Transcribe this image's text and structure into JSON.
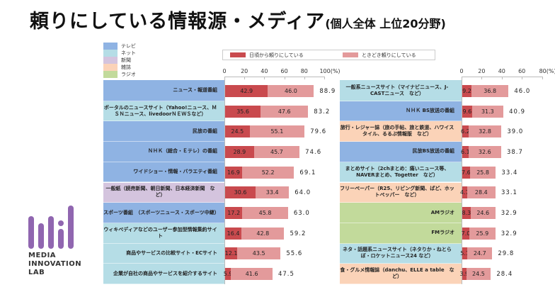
{
  "title": "頼りにしている情報源・メディア",
  "subtitle": "(個人全体 上位20分野)",
  "colors": {
    "tv": "#8fb3e3",
    "net": "#b5dde6",
    "newspaper": "#d4c4de",
    "magazine": "#fbd3b8",
    "radio": "#c2da9b",
    "daily": "#c94a4e",
    "sometimes": "#e39a9b",
    "logo": "#9066b0"
  },
  "category_legend": [
    {
      "key": "tv",
      "label": "テレビ"
    },
    {
      "key": "net",
      "label": "ネット"
    },
    {
      "key": "newspaper",
      "label": "新聞"
    },
    {
      "key": "magazine",
      "label": "雑誌"
    },
    {
      "key": "radio",
      "label": "ラジオ"
    }
  ],
  "logo": {
    "lines": [
      "MEDIA",
      "INNOVATION",
      "LAB"
    ]
  },
  "chart_data": [
    {
      "type": "bar",
      "stacked": true,
      "orientation": "horizontal",
      "legend": [
        "日頃から頼りにしている",
        "ときどき頼りにしている"
      ],
      "xlim": [
        0,
        100
      ],
      "ticks": [
        "0",
        "20",
        "40",
        "60",
        "80",
        "100(%)"
      ],
      "tick_values": [
        0,
        20,
        40,
        60,
        80,
        100
      ],
      "categories": [
        {
          "label": "ニュース・報道番組",
          "type": "tv",
          "daily": 42.9,
          "sometimes": 46.0,
          "total": "88.9"
        },
        {
          "label": "ポータルのニュースサイト（Yahoo!ニュース、ＭＳＮニュース、livedoorＮＥＷＳなど）",
          "type": "net",
          "daily": 35.6,
          "sometimes": 47.6,
          "total": "83.2"
        },
        {
          "label": "民放の番組",
          "type": "tv",
          "daily": 24.5,
          "sometimes": 55.1,
          "total": "79.6"
        },
        {
          "label": "ＮＨＫ（総合・Ｅテレ）の番組",
          "type": "tv",
          "daily": 28.9,
          "sometimes": 45.7,
          "total": "74.6"
        },
        {
          "label": "ワイドショー・情報・バラエティ番組",
          "type": "tv",
          "daily": 16.9,
          "sometimes": 52.2,
          "total": "69.1"
        },
        {
          "label": "一般紙（読売新聞、朝日新聞、日本経済新聞　など）",
          "type": "newspaper",
          "daily": 30.6,
          "sometimes": 33.4,
          "total": "64.0"
        },
        {
          "label": "スポーツ番組　（スポーツニュース・スポーツ中継）",
          "type": "tv",
          "daily": 17.2,
          "sometimes": 45.8,
          "total": "63.0"
        },
        {
          "label": "ウィキペディアなどのユーザー参加型情報集約サイト",
          "type": "net",
          "daily": 16.4,
          "sometimes": 42.8,
          "total": "59.2"
        },
        {
          "label": "商品やサービスの比較サイト・ECサイト",
          "type": "net",
          "daily": 12.1,
          "sometimes": 43.5,
          "total": "55.6"
        },
        {
          "label": "企業が自社の商品やサービスを紹介するサイト",
          "type": "net",
          "daily": 5.9,
          "sometimes": 41.6,
          "total": "47.5"
        }
      ]
    },
    {
      "type": "bar",
      "stacked": true,
      "orientation": "horizontal",
      "xlim": [
        0,
        80
      ],
      "ticks": [
        "0",
        "20",
        "40",
        "60",
        "80(%)"
      ],
      "tick_values": [
        0,
        20,
        40,
        60,
        80
      ],
      "categories": [
        {
          "label": "一般系ニュースサイト（マイナビニュース、J-CASTニュース　など）",
          "type": "net",
          "daily": 9.2,
          "sometimes": 36.8,
          "total": "46.0"
        },
        {
          "label": "ＮＨＫ BS放送の番組",
          "type": "tv",
          "daily": 9.6,
          "sometimes": 31.3,
          "total": "40.9"
        },
        {
          "label": "旅行・レジャー誌（旅の手帖、旅と鉄道、ハワイスタイル、るるぶ情報版　など）",
          "type": "magazine",
          "daily": 6.2,
          "sometimes": 32.8,
          "total": "39.0"
        },
        {
          "label": "民放BS放送の番組",
          "type": "tv",
          "daily": 6.1,
          "sometimes": 32.6,
          "total": "38.7"
        },
        {
          "label": "まとめサイト（2chまとめ：痛いニュース等、NAVERまとめ、Togetter　など）",
          "type": "net",
          "daily": 7.6,
          "sometimes": 25.8,
          "total": "33.4"
        },
        {
          "label": "フリーペーパー（R25、リビング新聞、ぱど、ホットペッパー　など）",
          "type": "magazine",
          "daily": 4.7,
          "sometimes": 28.4,
          "total": "33.1"
        },
        {
          "label": "AMラジオ",
          "type": "radio",
          "daily": 8.3,
          "sometimes": 24.6,
          "total": "32.9"
        },
        {
          "label": "FMラジオ",
          "type": "radio",
          "daily": 7.0,
          "sometimes": 25.9,
          "total": "32.9"
        },
        {
          "label": "ネタ・話題系ニュースサイト（ネタりか・ねとらぼ・ロケットニュース24 など）",
          "type": "net",
          "daily": 5.1,
          "sometimes": 24.7,
          "total": "29.8"
        },
        {
          "label": "食・グルメ情報誌（danchu、ELLE a table　など）",
          "type": "magazine",
          "daily": 3.9,
          "sometimes": 24.5,
          "total": "28.4"
        }
      ]
    }
  ]
}
